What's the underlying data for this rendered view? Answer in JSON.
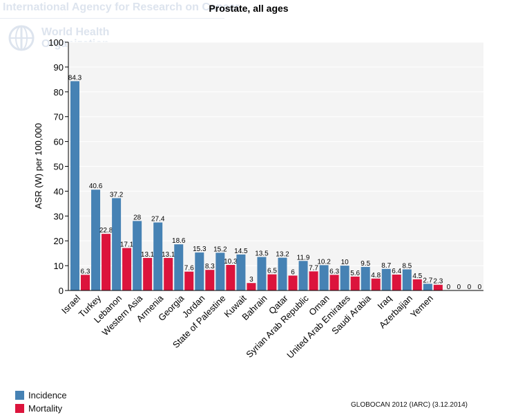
{
  "watermark": {
    "agency": "International Agency for Research on Cancer",
    "who_line1": "World Health",
    "who_line2": "Organization"
  },
  "chart_data": {
    "type": "bar",
    "title": "Prostate, all ages",
    "ylabel": "ASR (W) per 100,000",
    "xlabel": "",
    "ylim": [
      0,
      100
    ],
    "yticks": [
      0,
      10,
      20,
      30,
      40,
      50,
      60,
      70,
      80,
      90,
      100
    ],
    "grid": true,
    "legend_position": "bottom-left",
    "categories": [
      "Israel",
      "Turkey",
      "Lebanon",
      "Western Asia",
      "Armenia",
      "Georgia",
      "Jordan",
      "State of Palestine",
      "Kuwait",
      "Bahrain",
      "Qatar",
      "Syrian Arab Republic",
      "Oman",
      "United Arab Emirates",
      "Saudi Arabia",
      "Iraq",
      "Azerbaijan",
      "Yemen",
      "",
      ""
    ],
    "series": [
      {
        "name": "Incidence",
        "color": "#4682b4",
        "values": [
          84.3,
          40.6,
          37.2,
          28,
          27.4,
          18.6,
          15.3,
          15.2,
          14.5,
          13.5,
          13.2,
          11.9,
          10.2,
          10,
          9.5,
          8.7,
          8.5,
          2.7,
          0,
          0
        ]
      },
      {
        "name": "Mortality",
        "color": "#dc143c",
        "values": [
          6.3,
          22.8,
          17.1,
          13.1,
          13.1,
          7.6,
          8.3,
          10.3,
          3,
          6.5,
          6,
          7.7,
          6.3,
          5.6,
          4.8,
          6.4,
          4.5,
          2.3,
          0,
          0
        ]
      }
    ]
  },
  "source": "GLOBOCAN 2012 (IARC) (3.12.2014)"
}
